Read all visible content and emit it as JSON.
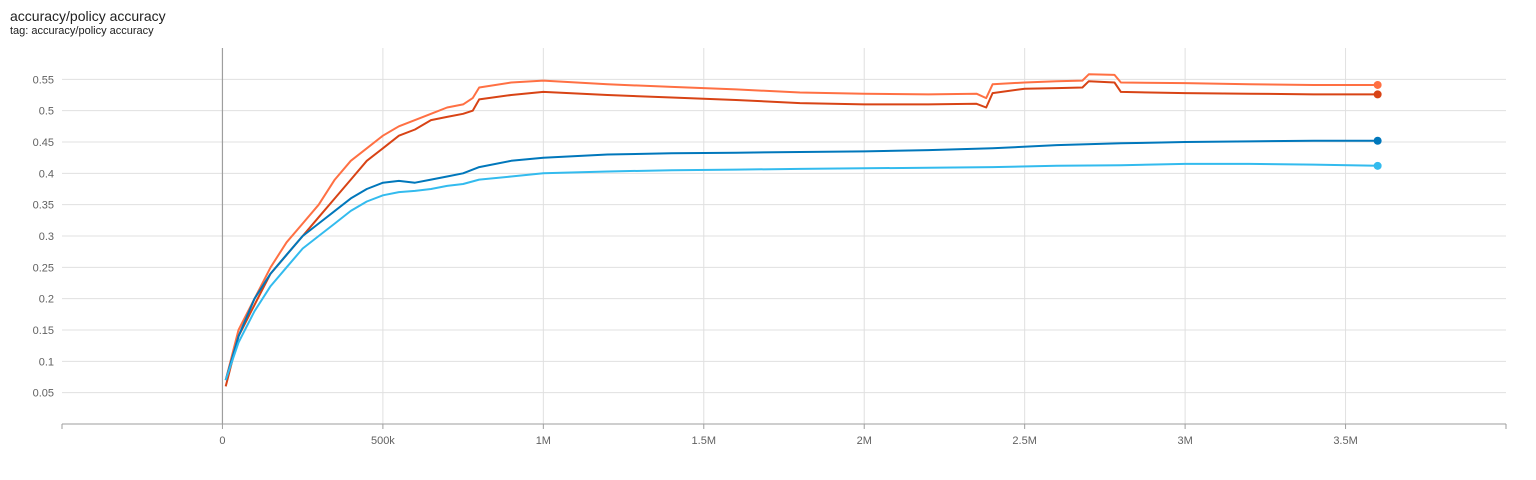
{
  "chart_title": "accuracy/policy accuracy",
  "chart_tag": "tag: accuracy/policy accuracy",
  "chart_data": {
    "type": "line",
    "title": "accuracy/policy accuracy",
    "subtitle": "tag: accuracy/policy accuracy",
    "xlabel": "",
    "ylabel": "",
    "xlim": [
      -500000,
      4000000
    ],
    "ylim": [
      0,
      0.6
    ],
    "x_ticks": [
      0,
      500000,
      1000000,
      1500000,
      2000000,
      2500000,
      3000000,
      3500000
    ],
    "x_tick_labels": [
      "0",
      "500k",
      "1M",
      "1.5M",
      "2M",
      "2.5M",
      "3M",
      "3.5M"
    ],
    "y_ticks": [
      0.05,
      0.1,
      0.15,
      0.2,
      0.25,
      0.3,
      0.35,
      0.4,
      0.45,
      0.5,
      0.55
    ],
    "y_tick_labels": [
      "0.05",
      "0.1",
      "0.15",
      "0.2",
      "0.25",
      "0.3",
      "0.35",
      "0.4",
      "0.45",
      "0.5",
      "0.55"
    ],
    "grid": true,
    "series": [
      {
        "color": "#ff7043",
        "x": [
          10000,
          50000,
          100000,
          150000,
          200000,
          250000,
          300000,
          350000,
          400000,
          450000,
          500000,
          550000,
          600000,
          650000,
          700000,
          750000,
          780000,
          800000,
          900000,
          1000000,
          1200000,
          1400000,
          1600000,
          1800000,
          2000000,
          2200000,
          2350000,
          2380000,
          2400000,
          2500000,
          2600000,
          2680000,
          2700000,
          2780000,
          2800000,
          3000000,
          3200000,
          3400000,
          3600000
        ],
        "y": [
          0.07,
          0.15,
          0.2,
          0.25,
          0.29,
          0.32,
          0.35,
          0.39,
          0.42,
          0.44,
          0.46,
          0.475,
          0.485,
          0.495,
          0.505,
          0.51,
          0.52,
          0.537,
          0.545,
          0.548,
          0.542,
          0.538,
          0.534,
          0.529,
          0.527,
          0.526,
          0.527,
          0.52,
          0.542,
          0.545,
          0.547,
          0.548,
          0.558,
          0.557,
          0.545,
          0.544,
          0.542,
          0.541,
          0.541
        ]
      },
      {
        "color": "#d84315",
        "x": [
          10000,
          50000,
          100000,
          150000,
          200000,
          250000,
          300000,
          350000,
          400000,
          450000,
          500000,
          550000,
          600000,
          650000,
          700000,
          750000,
          780000,
          800000,
          900000,
          1000000,
          1200000,
          1400000,
          1600000,
          1800000,
          2000000,
          2200000,
          2350000,
          2380000,
          2400000,
          2500000,
          2600000,
          2680000,
          2700000,
          2780000,
          2800000,
          3000000,
          3200000,
          3400000,
          3600000
        ],
        "y": [
          0.06,
          0.14,
          0.19,
          0.24,
          0.27,
          0.3,
          0.33,
          0.36,
          0.39,
          0.42,
          0.44,
          0.46,
          0.47,
          0.485,
          0.49,
          0.495,
          0.5,
          0.518,
          0.525,
          0.53,
          0.525,
          0.521,
          0.517,
          0.512,
          0.51,
          0.51,
          0.511,
          0.505,
          0.528,
          0.535,
          0.536,
          0.537,
          0.547,
          0.545,
          0.53,
          0.528,
          0.527,
          0.526,
          0.526
        ]
      },
      {
        "color": "#0077bb",
        "x": [
          10000,
          50000,
          100000,
          150000,
          200000,
          250000,
          300000,
          350000,
          400000,
          450000,
          500000,
          550000,
          600000,
          650000,
          700000,
          750000,
          800000,
          900000,
          1000000,
          1200000,
          1400000,
          1600000,
          1800000,
          2000000,
          2200000,
          2400000,
          2600000,
          2800000,
          3000000,
          3200000,
          3400000,
          3600000
        ],
        "y": [
          0.07,
          0.14,
          0.2,
          0.24,
          0.27,
          0.3,
          0.32,
          0.34,
          0.36,
          0.375,
          0.385,
          0.388,
          0.385,
          0.39,
          0.395,
          0.4,
          0.41,
          0.42,
          0.425,
          0.43,
          0.432,
          0.433,
          0.434,
          0.435,
          0.437,
          0.44,
          0.445,
          0.448,
          0.45,
          0.451,
          0.452,
          0.452
        ]
      },
      {
        "color": "#33bbee",
        "x": [
          10000,
          50000,
          100000,
          150000,
          200000,
          250000,
          300000,
          350000,
          400000,
          450000,
          500000,
          550000,
          600000,
          650000,
          700000,
          750000,
          800000,
          900000,
          1000000,
          1200000,
          1400000,
          1600000,
          1800000,
          2000000,
          2200000,
          2400000,
          2600000,
          2800000,
          3000000,
          3200000,
          3400000,
          3600000
        ],
        "y": [
          0.07,
          0.13,
          0.18,
          0.22,
          0.25,
          0.28,
          0.3,
          0.32,
          0.34,
          0.355,
          0.365,
          0.37,
          0.372,
          0.375,
          0.38,
          0.383,
          0.39,
          0.395,
          0.4,
          0.403,
          0.405,
          0.406,
          0.407,
          0.408,
          0.409,
          0.41,
          0.412,
          0.413,
          0.415,
          0.415,
          0.414,
          0.412
        ]
      }
    ]
  }
}
